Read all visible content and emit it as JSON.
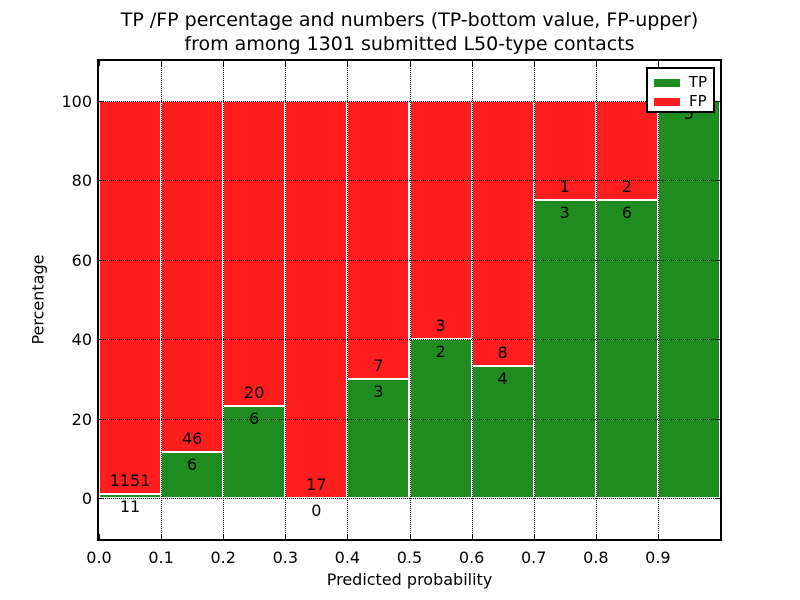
{
  "title": {
    "line1": "TP /FP percentage and numbers (TP-bottom value, FP-upper)",
    "line2": "from among 1301 submitted L50-type contacts"
  },
  "legend": {
    "items": [
      {
        "label": "TP",
        "color": "#1e8c1e"
      },
      {
        "label": "FP",
        "color": "#ff1d1d"
      }
    ]
  },
  "chart_data": {
    "type": "bar",
    "stacked": true,
    "grid": true,
    "legend_position": "upper right",
    "title": "TP /FP percentage and numbers (TP-bottom value, FP-upper) from among 1301 submitted L50-type contacts",
    "xlabel": "Predicted probability",
    "ylabel": "Percentage",
    "total_submitted": 1301,
    "xlim": [
      0.0,
      1.0
    ],
    "ylim": [
      -10.5,
      110
    ],
    "x_tick_labels": [
      "0.0",
      "0.1",
      "0.2",
      "0.3",
      "0.4",
      "0.5",
      "0.6",
      "0.7",
      "0.8",
      "0.9"
    ],
    "y_ticks": [
      "0",
      "20",
      "40",
      "60",
      "80",
      "100"
    ],
    "series": [
      {
        "name": "TP",
        "position": "bottom",
        "color": "#1e8c1e"
      },
      {
        "name": "FP",
        "position": "top",
        "color": "#ff1d1d"
      }
    ],
    "bins": [
      {
        "x_range": [
          0.0,
          0.1
        ],
        "tp_count_label": "11",
        "fp_count_label": "1151",
        "tp_pct": 0.95,
        "fp_pct": 99.05
      },
      {
        "x_range": [
          0.1,
          0.2
        ],
        "tp_count_label": "6",
        "fp_count_label": "46",
        "tp_pct": 11.54,
        "fp_pct": 88.46
      },
      {
        "x_range": [
          0.2,
          0.3
        ],
        "tp_count_label": "6",
        "fp_count_label": "20",
        "tp_pct": 23.08,
        "fp_pct": 76.92
      },
      {
        "x_range": [
          0.3,
          0.4
        ],
        "tp_count_label": "0",
        "fp_count_label": "17",
        "tp_pct": 0,
        "fp_pct": 100
      },
      {
        "x_range": [
          0.4,
          0.5
        ],
        "tp_count_label": "3",
        "fp_count_label": "7",
        "tp_pct": 30,
        "fp_pct": 70
      },
      {
        "x_range": [
          0.5,
          0.6
        ],
        "tp_count_label": "2",
        "fp_count_label": "3",
        "tp_pct": 40,
        "fp_pct": 60
      },
      {
        "x_range": [
          0.6,
          0.7
        ],
        "tp_count_label": "4",
        "fp_count_label": "8",
        "tp_pct": 33.33,
        "fp_pct": 66.67
      },
      {
        "x_range": [
          0.7,
          0.8
        ],
        "tp_count_label": "3",
        "fp_count_label": "1",
        "tp_pct": 75,
        "fp_pct": 25
      },
      {
        "x_range": [
          0.8,
          0.9
        ],
        "tp_count_label": "6",
        "fp_count_label": "2",
        "tp_pct": 75,
        "fp_pct": 25
      },
      {
        "x_range": [
          0.9,
          1.0
        ],
        "tp_count_label": "5",
        "fp_count_label": "",
        "tp_pct": 100,
        "fp_pct": 0
      }
    ]
  }
}
